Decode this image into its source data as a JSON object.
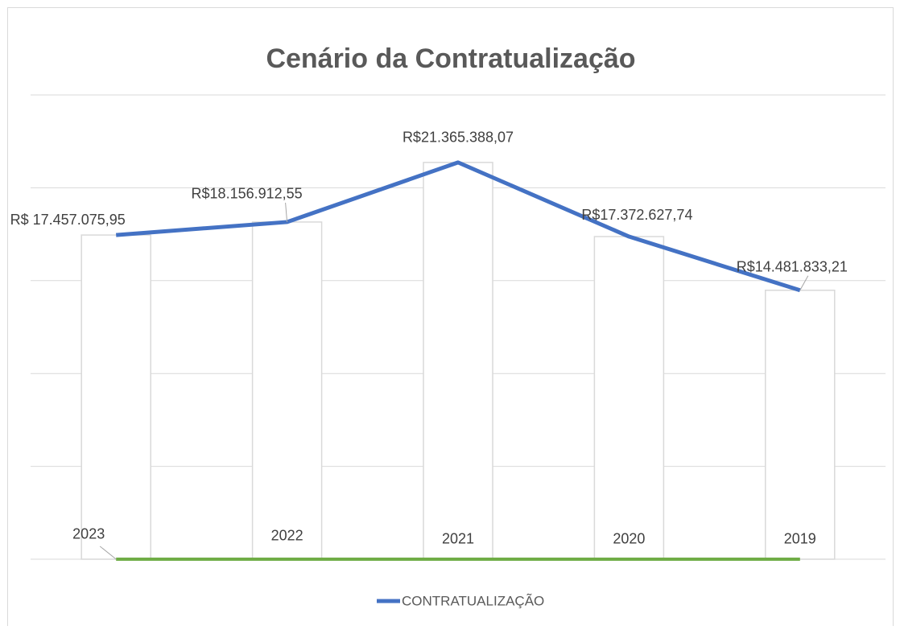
{
  "chart_data": {
    "type": "line",
    "title": "Cenário da Contratualização",
    "series": [
      {
        "name": "CONTRATUALIZAÇÃO",
        "color": "#4472c4",
        "values": [
          17457075.95,
          18156912.55,
          21365388.07,
          17372627.74,
          14481833.21
        ],
        "value_labels": [
          "R$ 17.457.075,95",
          "R$18.156.912,55",
          "R$21.365.388,07",
          "R$17.372.627,74",
          "R$14.481.833,21"
        ]
      },
      {
        "color": "#70ad47",
        "values": [
          2023,
          2022,
          2021,
          2020,
          2019
        ]
      }
    ],
    "bar_color": "#ffffff",
    "ylim": [
      0,
      25000000
    ],
    "yticks": [
      0,
      5000000,
      10000000,
      15000000,
      20000000,
      25000000
    ],
    "grid": true,
    "legend": "bottom"
  }
}
